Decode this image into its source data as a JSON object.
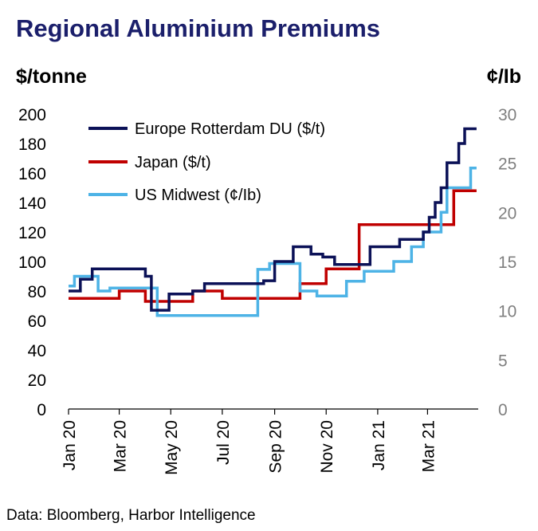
{
  "chart_data": {
    "type": "line",
    "title": "Regional Aluminium Premiums",
    "ylabel_left": "$/tonne",
    "ylabel_right": "¢/Ib",
    "source": "Data: Bloomberg, Harbor Intelligence",
    "ylim_left": [
      0,
      200
    ],
    "ylim_right": [
      0,
      30
    ],
    "yticks_left": [
      "0",
      "20",
      "40",
      "60",
      "80",
      "100",
      "120",
      "140",
      "160",
      "180",
      "200"
    ],
    "yticks_right": [
      "0",
      "5",
      "10",
      "15",
      "20",
      "25",
      "30"
    ],
    "xlim": [
      "2020-01-01",
      "2021-04-30"
    ],
    "xticks": [
      {
        "label": "Jan 20",
        "date": "2020-01-01"
      },
      {
        "label": "Mar 20",
        "date": "2020-03-01"
      },
      {
        "label": "May 20",
        "date": "2020-05-01"
      },
      {
        "label": "Jul 20",
        "date": "2020-07-01"
      },
      {
        "label": "Sep 20",
        "date": "2020-09-01"
      },
      {
        "label": "Nov 20",
        "date": "2020-11-01"
      },
      {
        "label": "Jan 21",
        "date": "2021-01-01"
      },
      {
        "label": "Mar 21",
        "date": "2021-03-01"
      }
    ],
    "legend_position": "top-left",
    "grid": false,
    "series": [
      {
        "name": "Europe Rotterdam DU ($/t)",
        "axis": "left",
        "color": "#0b1157",
        "style": "step",
        "points": [
          [
            "2020-01-01",
            80
          ],
          [
            "2020-01-15",
            88
          ],
          [
            "2020-01-29",
            95
          ],
          [
            "2020-04-01",
            90
          ],
          [
            "2020-04-08",
            67
          ],
          [
            "2020-04-29",
            78
          ],
          [
            "2020-05-27",
            80
          ],
          [
            "2020-06-10",
            85
          ],
          [
            "2020-08-19",
            87
          ],
          [
            "2020-09-01",
            100
          ],
          [
            "2020-09-23",
            110
          ],
          [
            "2020-10-14",
            105
          ],
          [
            "2020-10-28",
            103
          ],
          [
            "2020-11-11",
            98
          ],
          [
            "2020-12-23",
            110
          ],
          [
            "2021-01-27",
            115
          ],
          [
            "2021-02-24",
            120
          ],
          [
            "2021-03-03",
            130
          ],
          [
            "2021-03-10",
            140
          ],
          [
            "2021-03-17",
            150
          ],
          [
            "2021-03-24",
            167
          ],
          [
            "2021-04-07",
            180
          ],
          [
            "2021-04-14",
            190
          ],
          [
            "2021-04-28",
            190
          ]
        ]
      },
      {
        "name": "Japan ($/t)",
        "axis": "left",
        "color": "#c00000",
        "style": "step",
        "points": [
          [
            "2020-01-01",
            75
          ],
          [
            "2020-03-01",
            80
          ],
          [
            "2020-04-01",
            73
          ],
          [
            "2020-05-27",
            80
          ],
          [
            "2020-07-01",
            75
          ],
          [
            "2020-10-01",
            85
          ],
          [
            "2020-11-01",
            95
          ],
          [
            "2020-12-10",
            125
          ],
          [
            "2021-04-01",
            148
          ],
          [
            "2021-04-28",
            148
          ]
        ]
      },
      {
        "name": "US Midwest (¢/Ib)",
        "axis": "right",
        "color": "#4db3e6",
        "style": "step",
        "points": [
          [
            "2020-01-01",
            12.5
          ],
          [
            "2020-01-08",
            13.5
          ],
          [
            "2020-02-05",
            12.0
          ],
          [
            "2020-02-19",
            12.3
          ],
          [
            "2020-04-15",
            9.5
          ],
          [
            "2020-08-12",
            14.2
          ],
          [
            "2020-08-26",
            14.8
          ],
          [
            "2020-10-01",
            12.0
          ],
          [
            "2020-10-21",
            11.5
          ],
          [
            "2020-11-25",
            13.0
          ],
          [
            "2020-12-16",
            14.0
          ],
          [
            "2021-01-20",
            15.0
          ],
          [
            "2021-02-10",
            16.5
          ],
          [
            "2021-02-24",
            18.0
          ],
          [
            "2021-03-17",
            20.0
          ],
          [
            "2021-03-24",
            22.5
          ],
          [
            "2021-04-21",
            24.5
          ],
          [
            "2021-04-28",
            24.5
          ]
        ]
      }
    ]
  }
}
